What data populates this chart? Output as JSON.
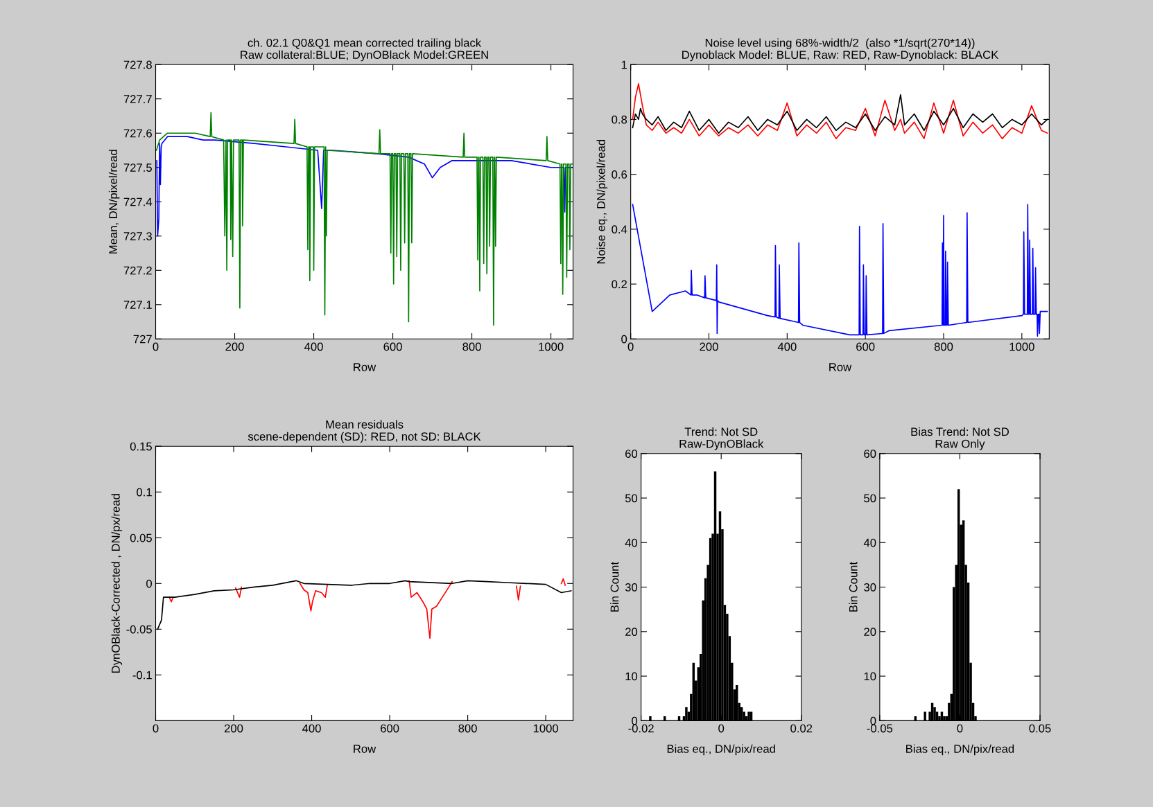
{
  "chart_data": [
    {
      "type": "line",
      "title": "ch. 02.1 Q0&Q1 mean corrected trailing black",
      "subtitle": "Raw collateral:BLUE; DynOBlack Model:GREEN",
      "xlabel": "Row",
      "ylabel": "Mean, DN/pixel/read",
      "xlim": [
        0,
        1056
      ],
      "xticks": [
        0,
        200,
        400,
        600,
        800,
        1000
      ],
      "ylim": [
        727,
        727.8
      ],
      "yticks": [
        727,
        727.1,
        727.2,
        727.3,
        727.4,
        727.5,
        727.6,
        727.7,
        727.8
      ],
      "grid": false,
      "series": [
        {
          "color": "#0000ff",
          "x": [
            3,
            5,
            8,
            10,
            12,
            14,
            16,
            30,
            80,
            120,
            150,
            250,
            330,
            410,
            420,
            425,
            450,
            560,
            640,
            680,
            695,
            700,
            720,
            750,
            900,
            1000,
            1033,
            1035,
            1037,
            1050,
            1056
          ],
          "values": [
            727.52,
            727.3,
            727.35,
            727.57,
            727.45,
            727.56,
            727.57,
            727.59,
            727.59,
            727.58,
            727.58,
            727.57,
            727.56,
            727.55,
            727.38,
            727.55,
            727.55,
            727.54,
            727.53,
            727.51,
            727.48,
            727.47,
            727.5,
            727.52,
            727.52,
            727.5,
            727.5,
            727.37,
            727.5,
            727.5,
            727.5
          ]
        },
        {
          "color": "#008000",
          "x": [
            2,
            10,
            30,
            100,
            138,
            140,
            142,
            172,
            175,
            178,
            180,
            182,
            189,
            190,
            192,
            195,
            197,
            211,
            213,
            215,
            219,
            220,
            222,
            350,
            352,
            354,
            383,
            385,
            387,
            389,
            390,
            392,
            399,
            400,
            402,
            426,
            428,
            430,
            432,
            434,
            565,
            567,
            569,
            593,
            595,
            597,
            600,
            602,
            604,
            608,
            610,
            612,
            618,
            620,
            622,
            628,
            630,
            632,
            638,
            640,
            642,
            646,
            648,
            650,
            778,
            780,
            782,
            813,
            815,
            817,
            818,
            820,
            822,
            828,
            830,
            832,
            836,
            838,
            840,
            843,
            845,
            847,
            853,
            855,
            857,
            858,
            860,
            862,
            988,
            990,
            992,
            1023,
            1025,
            1027,
            1028,
            1030,
            1032,
            1038,
            1040,
            1042,
            1046,
            1048,
            1050,
            1056
          ],
          "values": [
            727.55,
            727.58,
            727.6,
            727.6,
            727.59,
            727.66,
            727.59,
            727.58,
            727.3,
            727.58,
            727.2,
            727.58,
            727.58,
            727.29,
            727.58,
            727.24,
            727.58,
            727.58,
            727.09,
            727.58,
            727.58,
            727.33,
            727.58,
            727.57,
            727.64,
            727.57,
            727.56,
            727.26,
            727.56,
            727.56,
            727.17,
            727.56,
            727.56,
            727.2,
            727.56,
            727.56,
            727.07,
            727.56,
            727.3,
            727.55,
            727.54,
            727.61,
            727.54,
            727.54,
            727.25,
            727.54,
            727.54,
            727.16,
            727.54,
            727.54,
            727.24,
            727.54,
            727.54,
            727.2,
            727.54,
            727.54,
            727.28,
            727.54,
            727.54,
            727.05,
            727.54,
            727.54,
            727.28,
            727.54,
            727.53,
            727.6,
            727.53,
            727.53,
            727.23,
            727.53,
            727.53,
            727.14,
            727.53,
            727.53,
            727.22,
            727.53,
            727.53,
            727.19,
            727.53,
            727.53,
            727.27,
            727.53,
            727.53,
            727.04,
            727.53,
            727.53,
            727.27,
            727.53,
            727.52,
            727.59,
            727.52,
            727.51,
            727.22,
            727.51,
            727.51,
            727.13,
            727.51,
            727.51,
            727.18,
            727.51,
            727.51,
            727.26,
            727.51,
            727.51
          ]
        }
      ]
    },
    {
      "type": "line",
      "title": "Noise level using 68%-width/2  (also *1/sqrt(270*14))",
      "subtitle": "Dynoblack Model: BLUE, Raw: RED, Raw-Dynoblack: BLACK",
      "xlabel": "Row",
      "ylabel": "Noise eq., DN/pixel/read",
      "xlim": [
        0,
        1070
      ],
      "xticks": [
        0,
        200,
        400,
        600,
        800,
        1000
      ],
      "ylim": [
        0,
        1
      ],
      "yticks": [
        0,
        0.2,
        0.4,
        0.6,
        0.8,
        1
      ],
      "grid": false,
      "series": [
        {
          "color": "#ff0000",
          "x": [
            5,
            12,
            20,
            25,
            30,
            40,
            55,
            70,
            90,
            110,
            130,
            150,
            175,
            200,
            225,
            250,
            275,
            300,
            325,
            350,
            375,
            400,
            425,
            450,
            475,
            500,
            525,
            550,
            575,
            600,
            625,
            650,
            675,
            690,
            700,
            725,
            750,
            775,
            800,
            825,
            850,
            875,
            900,
            925,
            950,
            975,
            1000,
            1025,
            1050,
            1065
          ],
          "values": [
            0.8,
            0.88,
            0.93,
            0.89,
            0.85,
            0.78,
            0.76,
            0.79,
            0.75,
            0.77,
            0.75,
            0.8,
            0.74,
            0.78,
            0.74,
            0.77,
            0.75,
            0.78,
            0.74,
            0.78,
            0.76,
            0.86,
            0.74,
            0.78,
            0.75,
            0.79,
            0.73,
            0.77,
            0.76,
            0.84,
            0.74,
            0.87,
            0.76,
            0.8,
            0.75,
            0.79,
            0.73,
            0.86,
            0.75,
            0.87,
            0.74,
            0.79,
            0.75,
            0.78,
            0.73,
            0.77,
            0.75,
            0.85,
            0.76,
            0.75
          ]
        },
        {
          "color": "#000000",
          "x": [
            5,
            12,
            20,
            25,
            30,
            40,
            55,
            70,
            90,
            110,
            130,
            150,
            175,
            200,
            225,
            250,
            275,
            300,
            325,
            350,
            375,
            400,
            425,
            450,
            475,
            500,
            525,
            550,
            575,
            600,
            625,
            650,
            675,
            690,
            700,
            725,
            750,
            775,
            800,
            825,
            850,
            875,
            900,
            925,
            950,
            975,
            1000,
            1025,
            1050,
            1065
          ],
          "values": [
            0.77,
            0.82,
            0.8,
            0.84,
            0.82,
            0.8,
            0.78,
            0.81,
            0.76,
            0.79,
            0.77,
            0.83,
            0.76,
            0.8,
            0.75,
            0.79,
            0.77,
            0.81,
            0.76,
            0.8,
            0.78,
            0.83,
            0.76,
            0.8,
            0.77,
            0.81,
            0.76,
            0.79,
            0.77,
            0.82,
            0.76,
            0.81,
            0.78,
            0.89,
            0.78,
            0.82,
            0.76,
            0.83,
            0.78,
            0.84,
            0.77,
            0.82,
            0.79,
            0.82,
            0.77,
            0.8,
            0.78,
            0.82,
            0.78,
            0.8
          ]
        },
        {
          "color": "#0000ff",
          "x": [
            5,
            55,
            100,
            140,
            154,
            155,
            157,
            170,
            189,
            190,
            192,
            219,
            220,
            221,
            222,
            225,
            350,
            369,
            370,
            372,
            379,
            380,
            382,
            429,
            430,
            432,
            440,
            560,
            584,
            585,
            587,
            594,
            595,
            597,
            601,
            602,
            604,
            644,
            645,
            647,
            660,
            796,
            797,
            799,
            800,
            801,
            804,
            805,
            807,
            809,
            810,
            812,
            859,
            860,
            862,
            1000,
            1004,
            1005,
            1007,
            1014,
            1015,
            1017,
            1019,
            1020,
            1022,
            1027,
            1028,
            1030,
            1034,
            1035,
            1037,
            1039,
            1040,
            1042,
            1044,
            1045,
            1047,
            1065
          ],
          "values": [
            0.49,
            0.1,
            0.16,
            0.175,
            0.16,
            0.25,
            0.16,
            0.16,
            0.15,
            0.23,
            0.15,
            0.14,
            0.27,
            0.02,
            0.14,
            0.135,
            0.085,
            0.08,
            0.34,
            0.08,
            0.075,
            0.27,
            0.075,
            0.06,
            0.35,
            0.06,
            0.05,
            0.015,
            0.015,
            0.41,
            0.015,
            0.015,
            0.27,
            0.015,
            0.015,
            0.23,
            0.015,
            0.02,
            0.42,
            0.02,
            0.03,
            0.05,
            0.35,
            0.05,
            0.45,
            0.05,
            0.05,
            0.32,
            0.05,
            0.05,
            0.28,
            0.05,
            0.06,
            0.46,
            0.06,
            0.085,
            0.09,
            0.39,
            0.09,
            0.09,
            0.49,
            0.09,
            0.09,
            0.36,
            0.09,
            0.09,
            0.33,
            0.09,
            0.09,
            0.26,
            0.09,
            0.09,
            0.01,
            0.09,
            0.09,
            0.02,
            0.1,
            0.1
          ]
        }
      ]
    },
    {
      "type": "line",
      "title": "Mean residuals",
      "subtitle": "scene-dependent (SD): RED, not SD: BLACK",
      "xlabel": "Row",
      "ylabel": "DynOBlack-Corrected , DN/px/read",
      "xlim": [
        0,
        1070
      ],
      "xticks": [
        0,
        200,
        400,
        600,
        800,
        1000
      ],
      "ylim": [
        -0.15,
        0.15
      ],
      "yticks": [
        -0.1,
        -0.05,
        0,
        0.05,
        0.1,
        0.15
      ],
      "grid": false,
      "series": [
        {
          "color": "#ff0000",
          "x": [
            35,
            40,
            45,
            null,
            205,
            215,
            220,
            null,
            370,
            380,
            390,
            398,
            402,
            410,
            425,
            435,
            440,
            null,
            650,
            655,
            670,
            685,
            695,
            703,
            708,
            720,
            735,
            750,
            760,
            null,
            925,
            930,
            935,
            null,
            1040,
            1045,
            1050
          ],
          "values": [
            -0.015,
            -0.02,
            -0.015,
            null,
            -0.005,
            -0.015,
            -0.004,
            null,
            0.0,
            -0.007,
            -0.01,
            -0.03,
            -0.02,
            -0.008,
            -0.01,
            -0.015,
            -0.002,
            null,
            0.003,
            -0.015,
            -0.01,
            -0.02,
            -0.028,
            -0.06,
            -0.028,
            -0.025,
            -0.015,
            -0.005,
            0.002,
            null,
            -0.003,
            -0.018,
            -0.003,
            null,
            0.0,
            0.005,
            -0.002
          ]
        },
        {
          "color": "#000000",
          "x": [
            5,
            15,
            20,
            50,
            100,
            150,
            200,
            250,
            300,
            360,
            380,
            500,
            550,
            600,
            640,
            650,
            760,
            800,
            850,
            900,
            950,
            1000,
            1040,
            1065
          ],
          "values": [
            -0.05,
            -0.04,
            -0.015,
            -0.015,
            -0.012,
            -0.008,
            -0.007,
            -0.004,
            -0.002,
            0.003,
            0.0,
            -0.002,
            0.0,
            0.0,
            0.003,
            0.002,
            0.0,
            0.003,
            0.002,
            0.001,
            0.0,
            -0.001,
            -0.01,
            -0.008
          ]
        }
      ]
    },
    {
      "type": "histogram",
      "title": "Trend: Not SD",
      "subtitle": "Raw-DynOBlack",
      "xlabel": "Bias eq., DN/pix/read",
      "ylabel": "Bin Count",
      "xlim": [
        -0.02,
        0.02
      ],
      "xticks": [
        -0.02,
        0,
        0.02
      ],
      "ylim": [
        0,
        60
      ],
      "yticks": [
        0,
        10,
        20,
        30,
        40,
        50,
        60
      ],
      "grid": false,
      "color": "#000000",
      "bins": [
        -0.0186,
        -0.018,
        -0.0174,
        -0.0168,
        -0.0162,
        -0.0156,
        -0.015,
        -0.0144,
        -0.0138,
        -0.0132,
        -0.0126,
        -0.012,
        -0.0114,
        -0.0108,
        -0.0102,
        -0.0096,
        -0.009,
        -0.0084,
        -0.0078,
        -0.0072,
        -0.0066,
        -0.006,
        -0.0054,
        -0.0048,
        -0.0042,
        -0.0036,
        -0.003,
        -0.0024,
        -0.0018,
        -0.0012,
        -0.0006,
        0,
        0.0006,
        0.0012,
        0.0018,
        0.0024,
        0.003,
        0.0036,
        0.0042,
        0.0048,
        0.0054,
        0.006,
        0.0066,
        0.0072,
        0.0078
      ],
      "values": [
        0,
        1,
        0,
        0,
        0,
        0,
        0,
        1,
        0,
        0,
        0,
        0,
        0,
        1,
        0,
        1,
        3,
        2,
        6,
        13,
        9,
        12,
        15,
        27,
        32,
        35,
        41,
        42,
        56,
        42,
        47,
        43,
        26,
        24,
        19,
        13,
        7,
        8,
        4,
        3,
        2,
        1,
        2,
        2
      ]
    },
    {
      "type": "histogram",
      "title": "Bias Trend: Not SD",
      "subtitle": "Raw Only",
      "xlabel": "Bias eq., DN/pix/read",
      "ylabel": "Bin Count",
      "xlim": [
        -0.05,
        0.05
      ],
      "xticks": [
        -0.05,
        0,
        0.05
      ],
      "ylim": [
        0,
        60
      ],
      "yticks": [
        0,
        10,
        20,
        30,
        40,
        50,
        60
      ],
      "grid": false,
      "color": "#000000",
      "bins": [
        -0.0285,
        -0.027,
        -0.0255,
        -0.024,
        -0.0225,
        -0.021,
        -0.0195,
        -0.018,
        -0.0165,
        -0.015,
        -0.0135,
        -0.012,
        -0.0105,
        -0.009,
        -0.0075,
        -0.006,
        -0.0045,
        -0.003,
        -0.0015,
        0,
        0.0015,
        0.003,
        0.0045,
        0.006,
        0.0075,
        0.009,
        0.0105
      ],
      "values": [
        1,
        0,
        0,
        0,
        2,
        0,
        2,
        4,
        3,
        2,
        1,
        2,
        1,
        1,
        4,
        6,
        30,
        35,
        52,
        44,
        45,
        35,
        31,
        13,
        4,
        1
      ]
    }
  ]
}
